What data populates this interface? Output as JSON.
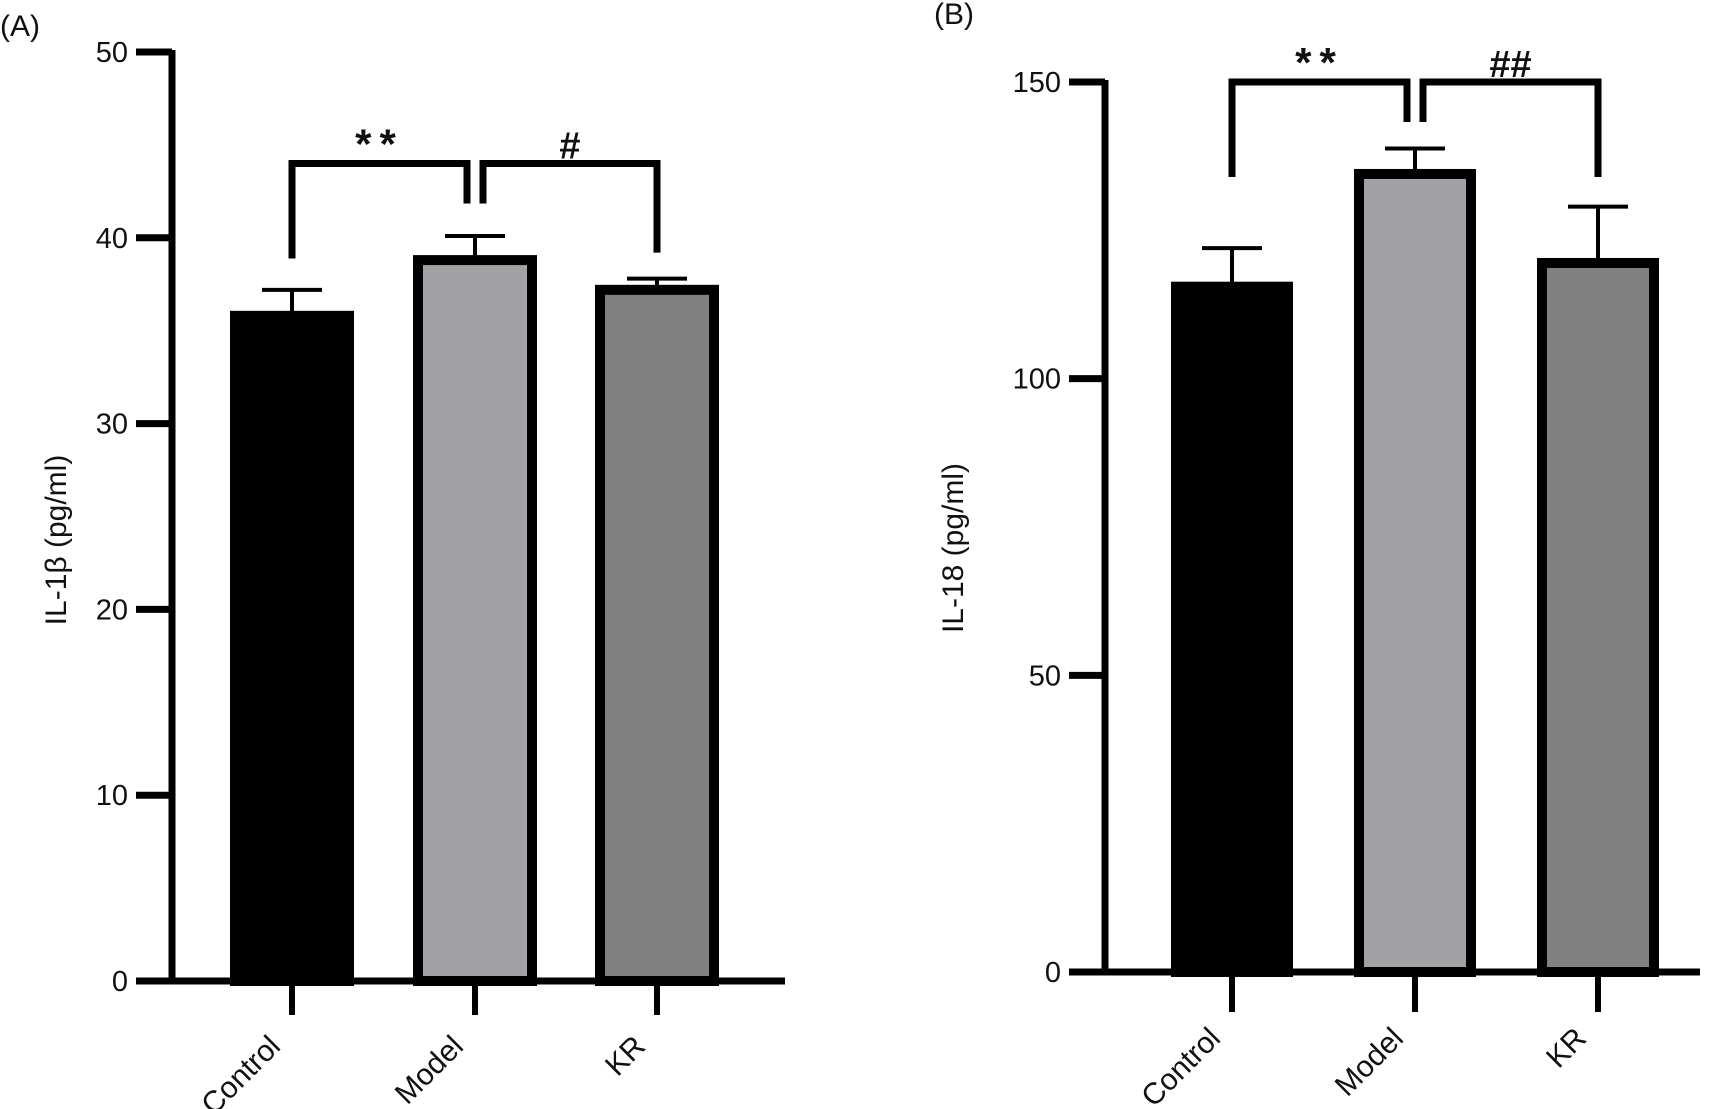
{
  "chart_data": [
    {
      "panel": "(A)",
      "type": "bar",
      "categories": [
        "Control",
        "Model",
        "KR"
      ],
      "values": [
        35.8,
        38.8,
        37.2
      ],
      "errors": [
        1.4,
        1.3,
        0.6
      ],
      "colors": [
        "#000000",
        "#a2a2a6",
        "#808080"
      ],
      "xlabel": "",
      "ylabel": "IL-1β (pg/ml)",
      "ylim": [
        0,
        50
      ],
      "yticks": [
        "0",
        "10",
        "20",
        "30",
        "40",
        "50"
      ],
      "grid": false,
      "significance": [
        {
          "from": 0,
          "to": 1,
          "label": "**",
          "level": 44
        },
        {
          "from": 1,
          "to": 2,
          "label": "#",
          "level": 44
        }
      ]
    },
    {
      "panel": "(B)",
      "type": "bar",
      "categories": [
        "Control",
        "Model",
        "KR"
      ],
      "values": [
        115.5,
        134.5,
        119.5
      ],
      "errors": [
        6.5,
        4.3,
        9.5
      ],
      "colors": [
        "#000000",
        "#a2a2a6",
        "#808080"
      ],
      "xlabel": "",
      "ylabel": "IL-18 (pg/ml)",
      "ylim": [
        0,
        150
      ],
      "yticks": [
        "0",
        "50",
        "100",
        "150"
      ],
      "grid": false,
      "significance": [
        {
          "from": 0,
          "to": 1,
          "label": "**",
          "level": 150
        },
        {
          "from": 1,
          "to": 2,
          "label": "##",
          "level": 150
        }
      ]
    }
  ]
}
